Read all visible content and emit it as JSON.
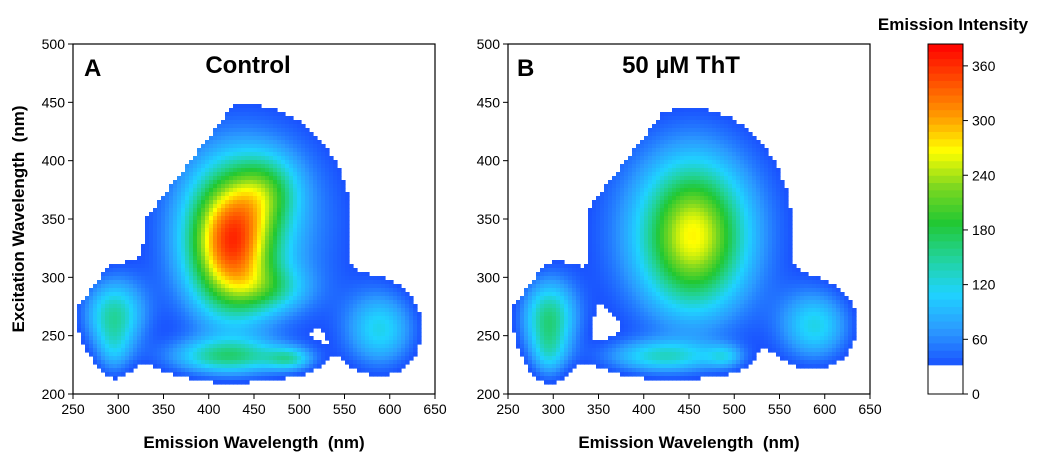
{
  "chart_data": [
    {
      "type": "heatmap",
      "subtype": "contour",
      "panel": "A",
      "title": "Control",
      "xlabel": "Emission Wavelength  (nm)",
      "ylabel": "Excitation Wavelength  (nm)",
      "xlim": [
        250,
        650
      ],
      "ylim": [
        200,
        500
      ],
      "xticks": [
        250,
        300,
        350,
        400,
        450,
        500,
        550,
        600,
        650
      ],
      "yticks": [
        200,
        250,
        300,
        350,
        400,
        450,
        500
      ],
      "peaks": [
        {
          "em": 425,
          "ex": 330,
          "amp": 280,
          "sx": 32,
          "sy": 40,
          "rot": 0.6
        },
        {
          "em": 465,
          "ex": 375,
          "amp": 90,
          "sx": 25,
          "sy": 22,
          "rot": 0.2
        },
        {
          "em": 470,
          "ex": 290,
          "amp": 70,
          "sx": 30,
          "sy": 14,
          "rot": 0
        },
        {
          "em": 445,
          "ex": 345,
          "amp": 85,
          "sx": 80,
          "sy": 70,
          "rot": 0.4
        },
        {
          "em": 295,
          "ex": 268,
          "amp": 135,
          "sx": 24,
          "sy": 22,
          "rot": 0
        },
        {
          "em": 295,
          "ex": 235,
          "amp": 55,
          "sx": 14,
          "sy": 16,
          "rot": 0
        },
        {
          "em": 420,
          "ex": 232,
          "amp": 130,
          "sx": 45,
          "sy": 11,
          "rot": 0
        },
        {
          "em": 490,
          "ex": 230,
          "amp": 90,
          "sx": 18,
          "sy": 7,
          "rot": 0
        },
        {
          "em": 590,
          "ex": 255,
          "amp": 110,
          "sx": 28,
          "sy": 24,
          "rot": 0
        }
      ]
    },
    {
      "type": "heatmap",
      "subtype": "contour",
      "panel": "B",
      "title": "50 µM ThT",
      "xlabel": "Emission Wavelength  (nm)",
      "ylabel": "",
      "xlim": [
        250,
        650
      ],
      "ylim": [
        200,
        500
      ],
      "xticks": [
        250,
        300,
        350,
        400,
        450,
        500,
        550,
        600,
        650
      ],
      "yticks": [
        200,
        250,
        300,
        350,
        400,
        450,
        500
      ],
      "peaks": [
        {
          "em": 455,
          "ex": 335,
          "amp": 190,
          "sx": 38,
          "sy": 42,
          "rot": 0.4
        },
        {
          "em": 450,
          "ex": 340,
          "amp": 80,
          "sx": 80,
          "sy": 70,
          "rot": 0.4
        },
        {
          "em": 295,
          "ex": 265,
          "amp": 150,
          "sx": 22,
          "sy": 24,
          "rot": 0
        },
        {
          "em": 295,
          "ex": 232,
          "amp": 60,
          "sx": 14,
          "sy": 15,
          "rot": 0
        },
        {
          "em": 420,
          "ex": 232,
          "amp": 105,
          "sx": 45,
          "sy": 10,
          "rot": 0
        },
        {
          "em": 490,
          "ex": 232,
          "amp": 60,
          "sx": 14,
          "sy": 7,
          "rot": 0
        },
        {
          "em": 590,
          "ex": 258,
          "amp": 110,
          "sx": 28,
          "sy": 22,
          "rot": 0
        }
      ]
    }
  ],
  "colorbar": {
    "title": "Emission Intensity",
    "range": [
      0,
      384
    ],
    "ticks": [
      0,
      60,
      120,
      180,
      240,
      300,
      360
    ],
    "white_below": 32
  },
  "colors": {
    "stops": [
      "#1a53ff",
      "#2b9bff",
      "#1fd3ff",
      "#22d39b",
      "#22c832",
      "#7ed820",
      "#ffff00",
      "#ff9900",
      "#ff4b00",
      "#ff0000"
    ],
    "contour_line": "#404040"
  }
}
